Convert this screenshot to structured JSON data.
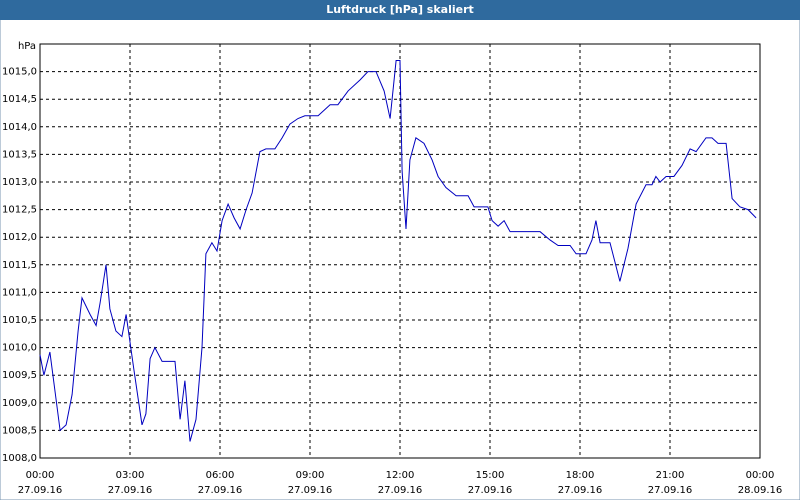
{
  "chart_data": {
    "type": "line",
    "title": "Luftdruck [hPa] skaliert",
    "y_unit": "hPa",
    "series": [
      {
        "name": "Luftdruck",
        "color": "#0000c0",
        "x": [
          0,
          0.13,
          0.33,
          0.67,
          0.87,
          1.07,
          1.27,
          1.4,
          1.67,
          1.87,
          2.0,
          2.2,
          2.33,
          2.53,
          2.73,
          2.87,
          3.13,
          3.4,
          3.53,
          3.67,
          3.83,
          4.07,
          4.5,
          4.67,
          4.83,
          5.0,
          5.2,
          5.4,
          5.53,
          5.73,
          5.9,
          6.07,
          6.27,
          6.47,
          6.67,
          6.87,
          7.07,
          7.33,
          7.53,
          7.83,
          8.07,
          8.33,
          8.6,
          8.83,
          9.27,
          9.67,
          9.93,
          10.27,
          10.67,
          10.93,
          11.2,
          11.47,
          11.67,
          11.87,
          12.0,
          12.07,
          12.2,
          12.33,
          12.53,
          12.8,
          13.07,
          13.27,
          13.53,
          13.87,
          14.27,
          14.47,
          14.93,
          15.07,
          15.27,
          15.47,
          15.67,
          16.67,
          17.0,
          17.27,
          17.67,
          17.87,
          18.2,
          18.4,
          18.53,
          18.67,
          19.0,
          19.33,
          19.6,
          19.87,
          20.2,
          20.4,
          20.53,
          20.67,
          20.87,
          21.13,
          21.4,
          21.67,
          21.87,
          22.2,
          22.4,
          22.6,
          22.87,
          23.07,
          23.33,
          23.6,
          23.87
        ],
        "values": [
          1009.87,
          1009.5,
          1009.92,
          1008.5,
          1008.6,
          1009.15,
          1010.3,
          1010.9,
          1010.6,
          1010.4,
          1010.8,
          1011.5,
          1010.7,
          1010.3,
          1010.2,
          1010.6,
          1009.6,
          1008.6,
          1008.8,
          1009.8,
          1010.0,
          1009.75,
          1009.75,
          1008.7,
          1009.4,
          1008.3,
          1008.7,
          1010.0,
          1011.7,
          1011.9,
          1011.75,
          1012.3,
          1012.6,
          1012.35,
          1012.15,
          1012.5,
          1012.8,
          1013.55,
          1013.6,
          1013.6,
          1013.8,
          1014.05,
          1014.15,
          1014.2,
          1014.2,
          1014.4,
          1014.4,
          1014.65,
          1014.85,
          1015.0,
          1015.0,
          1014.65,
          1014.15,
          1015.2,
          1015.2,
          1013.2,
          1012.15,
          1013.4,
          1013.8,
          1013.7,
          1013.4,
          1013.1,
          1012.9,
          1012.75,
          1012.75,
          1012.55,
          1012.55,
          1012.3,
          1012.2,
          1012.3,
          1012.1,
          1012.1,
          1011.95,
          1011.85,
          1011.85,
          1011.7,
          1011.7,
          1011.95,
          1012.3,
          1011.9,
          1011.9,
          1011.2,
          1011.8,
          1012.6,
          1012.95,
          1012.95,
          1013.1,
          1013.0,
          1013.1,
          1013.1,
          1013.3,
          1013.6,
          1013.55,
          1013.8,
          1013.8,
          1013.7,
          1013.7,
          1012.7,
          1012.55,
          1012.5,
          1012.35
        ]
      }
    ],
    "xlim": [
      0,
      24
    ],
    "ylim": [
      1008,
      1015.5
    ],
    "xticks": [
      {
        "value": 0,
        "label": "00:00"
      },
      {
        "value": 3,
        "label": "03:00"
      },
      {
        "value": 6,
        "label": "06:00"
      },
      {
        "value": 9,
        "label": "09:00"
      },
      {
        "value": 12,
        "label": "12:00"
      },
      {
        "value": 15,
        "label": "15:00"
      },
      {
        "value": 18,
        "label": "18:00"
      },
      {
        "value": 21,
        "label": "21:00"
      },
      {
        "value": 24,
        "label": "00:00"
      }
    ],
    "xtick_dates": [
      "27.09.16",
      "27.09.16",
      "27.09.16",
      "27.09.16",
      "27.09.16",
      "27.09.16",
      "27.09.16",
      "27.09.16",
      "28.09.16"
    ],
    "yticks": [
      {
        "value": 1008,
        "label": "1008,0"
      },
      {
        "value": 1008.5,
        "label": "1008,5"
      },
      {
        "value": 1009,
        "label": "1009,0"
      },
      {
        "value": 1009.5,
        "label": "1009,5"
      },
      {
        "value": 1010,
        "label": "1010,0"
      },
      {
        "value": 1010.5,
        "label": "1010,5"
      },
      {
        "value": 1011,
        "label": "1011,0"
      },
      {
        "value": 1011.5,
        "label": "1011,5"
      },
      {
        "value": 1012,
        "label": "1012,0"
      },
      {
        "value": 1012.5,
        "label": "1012,5"
      },
      {
        "value": 1013,
        "label": "1013,0"
      },
      {
        "value": 1013.5,
        "label": "1013,5"
      },
      {
        "value": 1014,
        "label": "1014,0"
      },
      {
        "value": 1014.5,
        "label": "1014,5"
      },
      {
        "value": 1015,
        "label": "1015,0"
      }
    ],
    "grid": true
  }
}
